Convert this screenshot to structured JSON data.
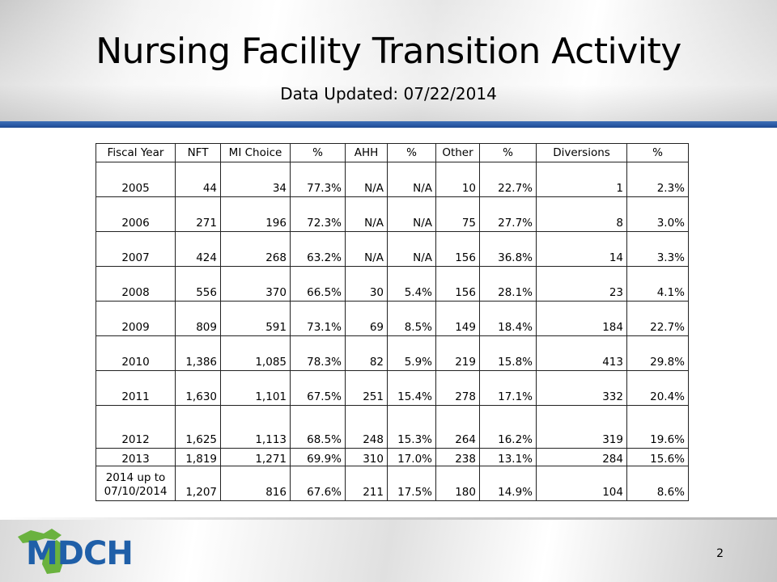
{
  "slide": {
    "title": "Nursing Facility Transition Activity",
    "subtitle": "Data Updated:  07/22/2014",
    "page_number": "2",
    "logo_text": "MDCH",
    "colors": {
      "accent_rule": "#2a5aa5",
      "logo_blue": "#1f5fa8",
      "logo_green": "#6ab23e"
    }
  },
  "table": {
    "headers": [
      "Fiscal Year",
      "NFT",
      "MI Choice",
      "%",
      "AHH",
      "%",
      "Other",
      "%",
      "Diversions",
      "%"
    ],
    "rows": [
      [
        "2005",
        "44",
        "34",
        "77.3%",
        "N/A",
        "N/A",
        "10",
        "22.7%",
        "1",
        "2.3%"
      ],
      [
        "2006",
        "271",
        "196",
        "72.3%",
        "N/A",
        "N/A",
        "75",
        "27.7%",
        "8",
        "3.0%"
      ],
      [
        "2007",
        "424",
        "268",
        "63.2%",
        "N/A",
        "N/A",
        "156",
        "36.8%",
        "14",
        "3.3%"
      ],
      [
        "2008",
        "556",
        "370",
        "66.5%",
        "30",
        "5.4%",
        "156",
        "28.1%",
        "23",
        "4.1%"
      ],
      [
        "2009",
        "809",
        "591",
        "73.1%",
        "69",
        "8.5%",
        "149",
        "18.4%",
        "184",
        "22.7%"
      ],
      [
        "2010",
        "1,386",
        "1,085",
        "78.3%",
        "82",
        "5.9%",
        "219",
        "15.8%",
        "413",
        "29.8%"
      ],
      [
        "2011",
        "1,630",
        "1,101",
        "67.5%",
        "251",
        "15.4%",
        "278",
        "17.1%",
        "332",
        "20.4%"
      ],
      [
        "2012",
        "1,625",
        "1,113",
        "68.5%",
        "248",
        "15.3%",
        "264",
        "16.2%",
        "319",
        "19.6%"
      ],
      [
        "2013",
        "1,819",
        "1,271",
        "69.9%",
        "310",
        "17.0%",
        "238",
        "13.1%",
        "284",
        "15.6%"
      ],
      [
        "2014 up to 07/10/2014",
        "1,207",
        "816",
        "67.6%",
        "211",
        "17.5%",
        "180",
        "14.9%",
        "104",
        "8.6%"
      ]
    ]
  }
}
